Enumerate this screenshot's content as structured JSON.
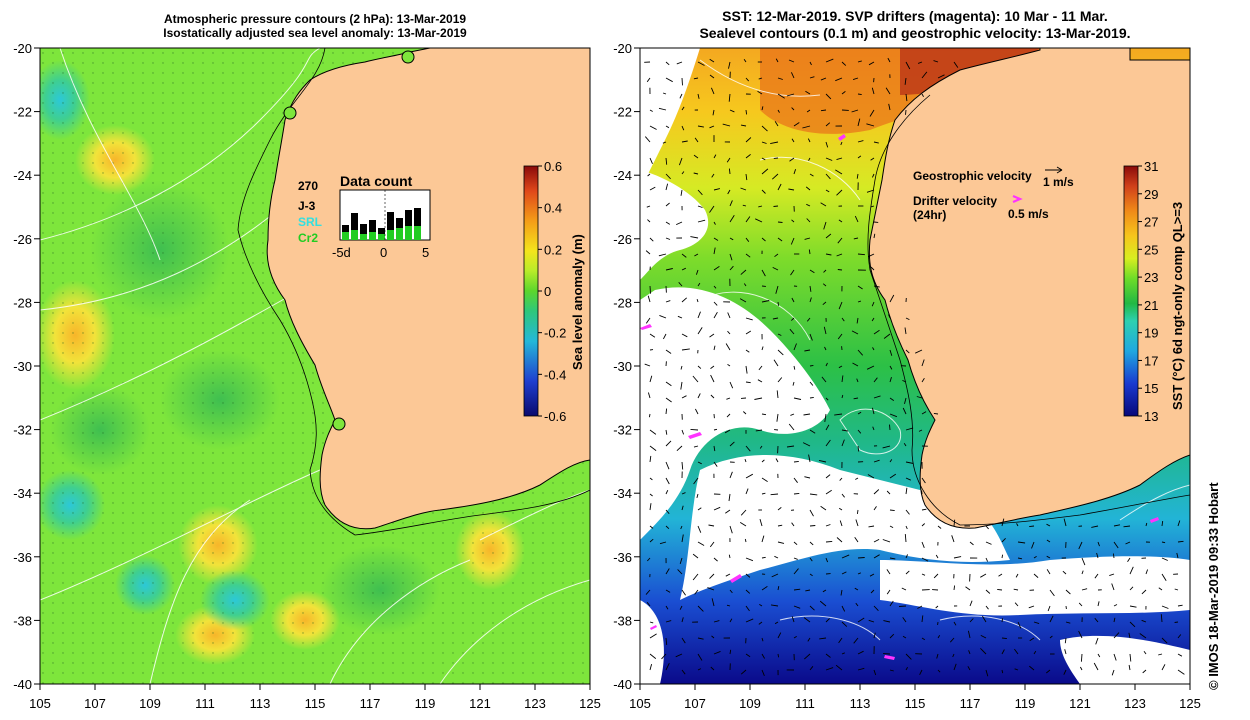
{
  "left_panel": {
    "title_line1": "Atmospheric pressure contours (2 hPa): 13-Mar-2019",
    "title_line2": "Isostatically adjusted sea level anomaly: 13-Mar-2019",
    "colorbar_label": "Sea level anomaly (m)",
    "colorbar_ticks": [
      "0.6",
      "0.4",
      "0.2",
      "0",
      "-0.2",
      "-0.4",
      "-0.6"
    ],
    "inset": {
      "title": "Data count",
      "max_count": "270",
      "missions": [
        {
          "name": "J-3",
          "color": "#000000"
        },
        {
          "name": "SRL",
          "color": "#33e0e0"
        },
        {
          "name": "Cr2",
          "color": "#22cc22"
        }
      ],
      "x_ticks": [
        "-5d",
        "0",
        "5"
      ]
    }
  },
  "right_panel": {
    "title_line1": "SST: 12-Mar-2019. SVP drifters (magenta): 10 Mar - 11 Mar.",
    "title_line2": "Sealevel contours (0.1 m) and geostrophic velocity: 13-Mar-2019.",
    "legend": {
      "geo_label": "Geostrophic velocity",
      "geo_scale": "1 m/s",
      "drifter_label": "Drifter velocity",
      "drifter_sub": "(24hr)",
      "drifter_scale": "0.5 m/s"
    },
    "colorbar_label": "SST (°C) 6d ngt-only comp QL>=3",
    "colorbar_ticks": [
      "31",
      "29",
      "27",
      "25",
      "23",
      "21",
      "19",
      "17",
      "15",
      "13"
    ]
  },
  "axes": {
    "lon_ticks": [
      "105",
      "107",
      "109",
      "111",
      "113",
      "115",
      "117",
      "119",
      "121",
      "123",
      "125"
    ],
    "lat_ticks": [
      "-20",
      "-22",
      "-24",
      "-26",
      "-28",
      "-30",
      "-32",
      "-34",
      "-36",
      "-38",
      "-40"
    ]
  },
  "credit": "© IMOS 18-Mar-2019 09:33 Hobart",
  "colors": {
    "land": "#fcc896",
    "ocean_green": "#7ee63c",
    "coast": "#000000"
  }
}
